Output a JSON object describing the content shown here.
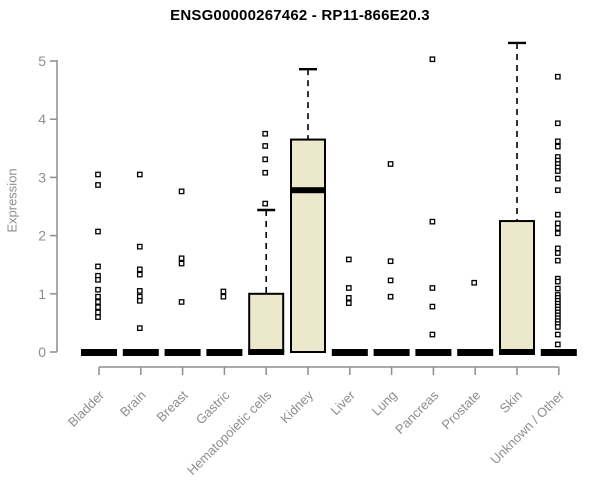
{
  "chart_data": {
    "type": "boxplot",
    "title": "ENSG00000267462 - RP11-866E20.3",
    "ylabel": "Expression",
    "ylim": [
      0,
      5
    ],
    "yticks": [
      0,
      1,
      2,
      3,
      4,
      5
    ],
    "grid": false,
    "legend": null,
    "colors": {
      "box_fill": "#ece8cc",
      "box_stroke": "#000000",
      "axis": "#8e8e8e",
      "point_fill": "#ffffff",
      "point_stroke": "#000000"
    },
    "categories": [
      {
        "name": "Bladder",
        "q1": 0,
        "median": 0,
        "q3": 0,
        "whisker_high": 0,
        "points": [
          3.05,
          2.87,
          2.07,
          1.47,
          1.31,
          1.24,
          1.07,
          0.95,
          0.86,
          0.77,
          0.68,
          0.6
        ]
      },
      {
        "name": "Brain",
        "q1": 0,
        "median": 0,
        "q3": 0,
        "whisker_high": 0,
        "points": [
          3.05,
          1.81,
          1.42,
          1.33,
          1.05,
          0.95,
          0.88,
          0.41
        ]
      },
      {
        "name": "Breast",
        "q1": 0,
        "median": 0,
        "q3": 0,
        "whisker_high": 0,
        "points": [
          2.76,
          1.61,
          1.52,
          0.86
        ]
      },
      {
        "name": "Gastric",
        "q1": 0,
        "median": 0,
        "q3": 0,
        "whisker_high": 0,
        "points": [
          1.04,
          0.95
        ]
      },
      {
        "name": "Hematopoietic cells",
        "q1": 0,
        "median": 0,
        "q3": 1.0,
        "whisker_high": 2.44,
        "points": [
          3.75,
          3.54,
          3.31,
          3.08,
          2.55
        ]
      },
      {
        "name": "Kidney",
        "q1": 0,
        "median": 2.78,
        "q3": 3.65,
        "whisker_high": 4.86,
        "points": []
      },
      {
        "name": "Liver",
        "q1": 0,
        "median": 0,
        "q3": 0,
        "whisker_high": 0,
        "points": [
          1.59,
          1.1,
          0.93,
          0.84
        ]
      },
      {
        "name": "Lung",
        "q1": 0,
        "median": 0,
        "q3": 0,
        "whisker_high": 0,
        "points": [
          3.23,
          1.56,
          1.23,
          0.95
        ]
      },
      {
        "name": "Pancreas",
        "q1": 0,
        "median": 0,
        "q3": 0,
        "whisker_high": 0,
        "points": [
          5.03,
          2.24,
          1.1,
          0.78,
          0.3
        ]
      },
      {
        "name": "Prostate",
        "q1": 0,
        "median": 0,
        "q3": 0,
        "whisker_high": 0,
        "points": [
          1.19
        ]
      },
      {
        "name": "Skin",
        "q1": 0,
        "median": 0,
        "q3": 2.25,
        "whisker_high": 5.31,
        "points": []
      },
      {
        "name": "Unknown / Other",
        "q1": 0,
        "median": 0,
        "q3": 0,
        "whisker_high": 0,
        "points": [
          4.73,
          3.93,
          3.62,
          3.53,
          3.35,
          3.29,
          3.23,
          3.17,
          3.11,
          2.98,
          2.78,
          2.36,
          2.21,
          2.13,
          2.04,
          1.78,
          1.7,
          1.57,
          1.26,
          1.21,
          1.09,
          0.98,
          0.93,
          0.88,
          0.83,
          0.78,
          0.73,
          0.68,
          0.63,
          0.58,
          0.53,
          0.48,
          0.43,
          0.3,
          0.13
        ]
      }
    ]
  }
}
